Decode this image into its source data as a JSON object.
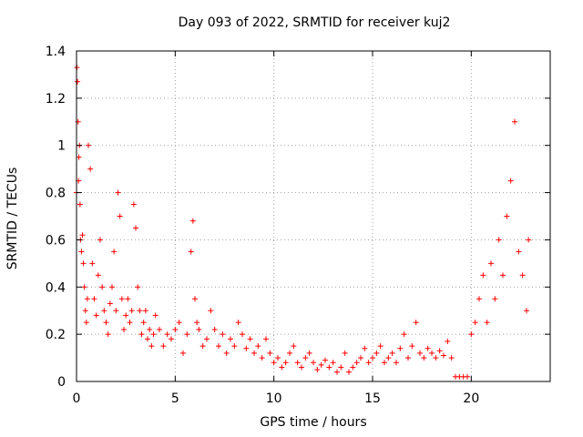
{
  "chart_data": {
    "type": "scatter",
    "title": "Day 093 of 2022, SRMTID for receiver kuj2",
    "xlabel": "GPS time / hours",
    "ylabel": "SRMTID / TECUs",
    "xlim": [
      0,
      24
    ],
    "ylim": [
      0,
      1.4
    ],
    "xticks": [
      0,
      5,
      10,
      15,
      20
    ],
    "yticks": [
      0,
      0.2,
      0.4,
      0.6,
      0.8,
      1,
      1.2,
      1.4
    ],
    "ytick_labels": [
      "0",
      "0.2",
      "0.4",
      "0.6",
      "0.8",
      "1",
      "1.2",
      "1.4"
    ],
    "grid": true,
    "marker": "+",
    "color": "#ff0000",
    "series": [
      {
        "name": "SRMTID",
        "x": [
          0.0,
          0.02,
          0.05,
          0.08,
          0.1,
          0.12,
          0.15,
          0.18,
          0.2,
          0.25,
          0.3,
          0.35,
          0.4,
          0.45,
          0.5,
          0.55,
          0.6,
          0.7,
          0.8,
          0.9,
          1.0,
          1.1,
          1.2,
          1.3,
          1.4,
          1.5,
          1.6,
          1.7,
          1.8,
          1.9,
          2.0,
          2.1,
          2.2,
          2.3,
          2.4,
          2.5,
          2.6,
          2.7,
          2.8,
          2.9,
          3.0,
          3.1,
          3.2,
          3.3,
          3.4,
          3.5,
          3.6,
          3.7,
          3.8,
          3.9,
          4.0,
          4.2,
          4.4,
          4.6,
          4.8,
          5.0,
          5.2,
          5.4,
          5.6,
          5.8,
          5.9,
          6.0,
          6.1,
          6.2,
          6.4,
          6.6,
          6.8,
          7.0,
          7.2,
          7.4,
          7.6,
          7.8,
          8.0,
          8.2,
          8.4,
          8.6,
          8.8,
          9.0,
          9.2,
          9.4,
          9.6,
          9.8,
          10.0,
          10.2,
          10.4,
          10.6,
          10.8,
          11.0,
          11.2,
          11.4,
          11.6,
          11.8,
          12.0,
          12.2,
          12.4,
          12.6,
          12.8,
          13.0,
          13.2,
          13.4,
          13.6,
          13.8,
          14.0,
          14.2,
          14.4,
          14.6,
          14.8,
          15.0,
          15.2,
          15.4,
          15.6,
          15.8,
          16.0,
          16.2,
          16.4,
          16.6,
          16.8,
          17.0,
          17.2,
          17.4,
          17.6,
          17.8,
          18.0,
          18.2,
          18.4,
          18.6,
          18.8,
          19.0,
          19.2,
          19.4,
          19.6,
          19.8,
          20.0,
          20.2,
          20.4,
          20.6,
          20.8,
          21.0,
          21.2,
          21.4,
          21.6,
          21.8,
          22.0,
          22.2,
          22.4,
          22.6,
          22.8,
          22.9
        ],
        "y": [
          0.8,
          1.33,
          1.27,
          1.1,
          0.85,
          0.95,
          1.0,
          0.75,
          0.6,
          0.55,
          0.62,
          0.5,
          0.4,
          0.3,
          0.25,
          0.35,
          1.0,
          0.9,
          0.5,
          0.35,
          0.28,
          0.45,
          0.6,
          0.4,
          0.3,
          0.25,
          0.2,
          0.33,
          0.4,
          0.55,
          0.3,
          0.8,
          0.7,
          0.35,
          0.22,
          0.28,
          0.35,
          0.25,
          0.3,
          0.75,
          0.65,
          0.4,
          0.3,
          0.2,
          0.25,
          0.3,
          0.18,
          0.22,
          0.15,
          0.2,
          0.28,
          0.22,
          0.15,
          0.2,
          0.18,
          0.22,
          0.25,
          0.12,
          0.2,
          0.55,
          0.68,
          0.35,
          0.25,
          0.22,
          0.15,
          0.18,
          0.3,
          0.22,
          0.15,
          0.2,
          0.12,
          0.18,
          0.15,
          0.25,
          0.2,
          0.14,
          0.18,
          0.12,
          0.15,
          0.1,
          0.18,
          0.12,
          0.08,
          0.1,
          0.06,
          0.08,
          0.12,
          0.15,
          0.08,
          0.06,
          0.1,
          0.12,
          0.08,
          0.05,
          0.07,
          0.09,
          0.06,
          0.08,
          0.04,
          0.06,
          0.12,
          0.04,
          0.06,
          0.08,
          0.1,
          0.14,
          0.08,
          0.1,
          0.12,
          0.15,
          0.08,
          0.1,
          0.12,
          0.08,
          0.14,
          0.2,
          0.1,
          0.15,
          0.25,
          0.12,
          0.1,
          0.14,
          0.12,
          0.1,
          0.13,
          0.11,
          0.17,
          0.1,
          0.02,
          0.02,
          0.02,
          0.02,
          0.2,
          0.25,
          0.35,
          0.45,
          0.25,
          0.5,
          0.35,
          0.6,
          0.45,
          0.7,
          0.85,
          1.1,
          0.55,
          0.45,
          0.3,
          0.6
        ]
      }
    ]
  }
}
